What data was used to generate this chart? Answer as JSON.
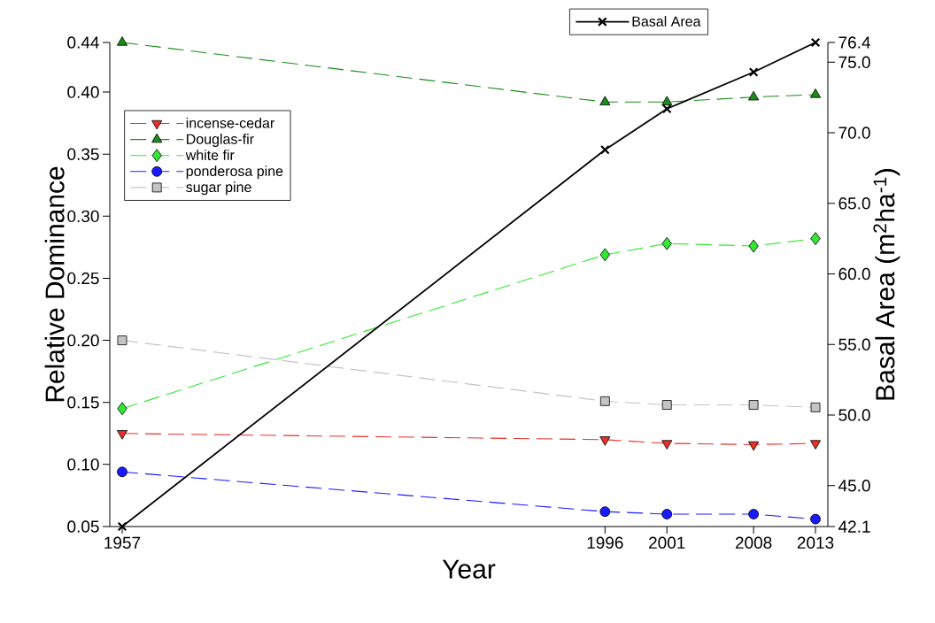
{
  "chart_data": {
    "type": "line",
    "xlabel": "Year",
    "ylabel": "Relative Dominance",
    "y2label": "Basal Area (m$^{2}$ha$^{-1}$)",
    "x": [
      1957,
      1996,
      2001,
      2008,
      2013
    ],
    "xlim": [
      1956,
      2014
    ],
    "xticks": [
      1957,
      1996,
      2001,
      2008,
      2013
    ],
    "ylim": [
      0.05,
      0.44
    ],
    "yticks": [
      {
        "value": 0.05,
        "label": "0.05"
      },
      {
        "value": 0.1,
        "label": "0.10"
      },
      {
        "value": 0.15,
        "label": "0.15"
      },
      {
        "value": 0.2,
        "label": "0.20"
      },
      {
        "value": 0.25,
        "label": "0.25"
      },
      {
        "value": 0.3,
        "label": "0.30"
      },
      {
        "value": 0.35,
        "label": "0.35"
      },
      {
        "value": 0.4,
        "label": "0.40"
      },
      {
        "value": 0.44,
        "label": "0.44"
      }
    ],
    "y2lim": [
      42.1,
      76.4
    ],
    "y2ticks": [
      {
        "value": 42.1,
        "label": "42.1"
      },
      {
        "value": 45,
        "label": "45.0"
      },
      {
        "value": 50,
        "label": "50.0"
      },
      {
        "value": 55,
        "label": "55.0"
      },
      {
        "value": 60,
        "label": "60.0"
      },
      {
        "value": 65,
        "label": "65.0"
      },
      {
        "value": 70,
        "label": "70.0"
      },
      {
        "value": 75,
        "label": "75.0"
      },
      {
        "value": 76.4,
        "label": "76.4"
      }
    ],
    "legend": "top left",
    "series": [
      {
        "name": "incense-cedar",
        "color": "#e8302a",
        "marker": "triangle-down",
        "line_style": "dashed",
        "values": [
          0.125,
          0.12,
          0.117,
          0.116,
          0.117
        ]
      },
      {
        "name": "Douglas-fir",
        "color": "#1a8c1a",
        "marker": "triangle",
        "line_style": "dashed",
        "values": [
          0.44,
          0.392,
          0.392,
          0.396,
          0.398
        ]
      },
      {
        "name": "white fir",
        "color": "#33e833",
        "marker": "diamond",
        "line_style": "dashed",
        "values": [
          0.145,
          0.269,
          0.278,
          0.276,
          0.282
        ]
      },
      {
        "name": "ponderosa pine",
        "color": "#1a1aff",
        "marker": "circle",
        "line_style": "dashed",
        "values": [
          0.094,
          0.062,
          0.06,
          0.06,
          0.056
        ]
      },
      {
        "name": "sugar pine",
        "color": "#c4c4c4",
        "marker": "square",
        "line_style": "dashed",
        "values": [
          0.2,
          0.151,
          0.148,
          0.148,
          0.146
        ]
      },
      {
        "name": "Basal Area",
        "color": "#000000",
        "marker": "cross",
        "line_style": "solid",
        "axis": "y2",
        "values": [
          42.1,
          68.8,
          71.7,
          74.3,
          76.4
        ]
      }
    ]
  }
}
